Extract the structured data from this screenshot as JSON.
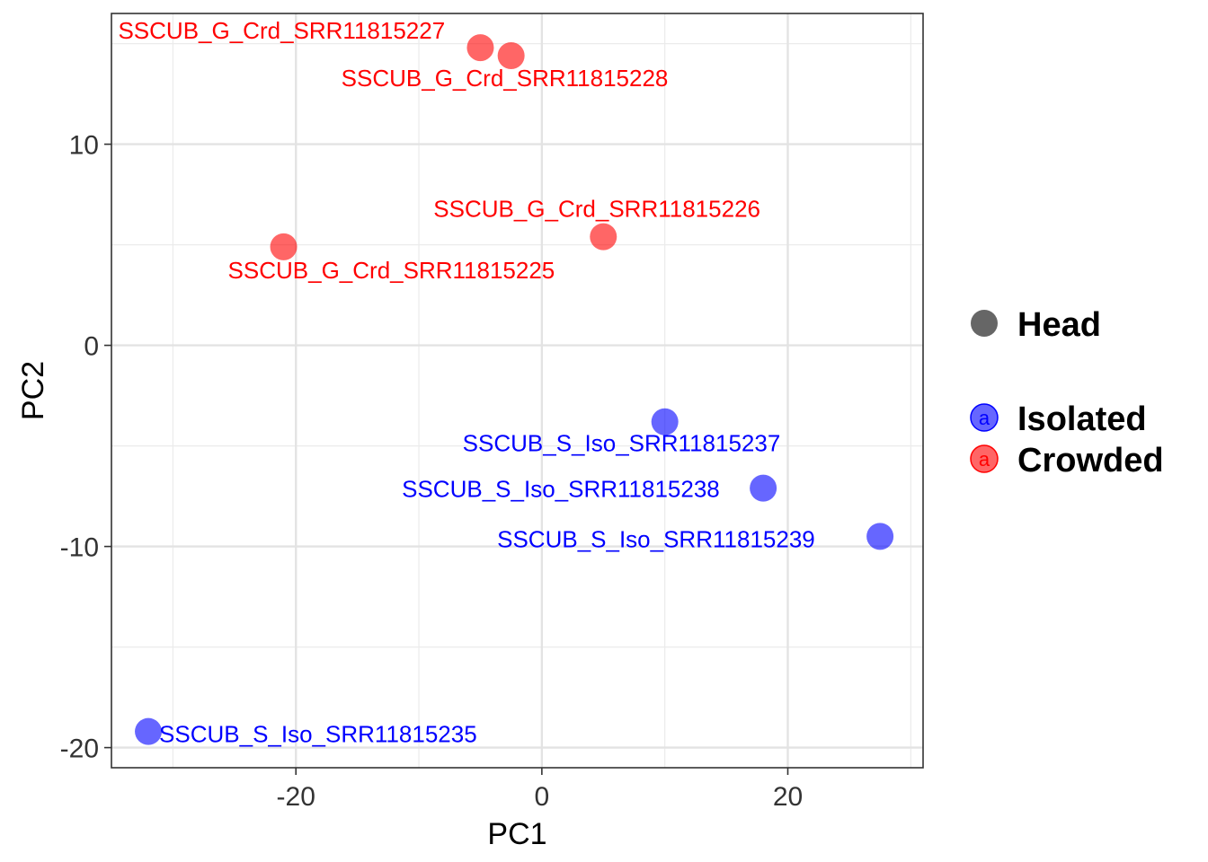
{
  "chart_data": {
    "type": "scatter",
    "title": "",
    "xlabel": "PC1",
    "ylabel": "PC2",
    "xlim": [
      -35,
      31
    ],
    "ylim": [
      -21,
      16.5
    ],
    "x_ticks": [
      -20,
      0,
      20
    ],
    "y_ticks": [
      -20,
      -10,
      0,
      10
    ],
    "grid": true,
    "legend_position": "right",
    "colors": {
      "Isolated": "#0000FF",
      "Crowded": "#FF0000"
    },
    "point_alpha": 0.6,
    "series": [
      {
        "name": "Isolated",
        "points": [
          {
            "x": -32.0,
            "y": -19.2,
            "label": "SSCUB_S_Iso_SRR11815235"
          },
          {
            "x": 10.0,
            "y": -3.8,
            "label": "SSCUB_S_Iso_SRR11815237"
          },
          {
            "x": 18.0,
            "y": -7.1,
            "label": "SSCUB_S_Iso_SRR11815238"
          },
          {
            "x": 27.5,
            "y": -9.5,
            "label": "SSCUB_S_Iso_SRR11815239"
          }
        ]
      },
      {
        "name": "Crowded",
        "points": [
          {
            "x": -21.0,
            "y": 4.9,
            "label": "SSCUB_G_Crd_SRR11815225"
          },
          {
            "x": 5.0,
            "y": 5.4,
            "label": "SSCUB_G_Crd_SRR11815226"
          },
          {
            "x": -5.0,
            "y": 14.8,
            "label": "SSCUB_G_Crd_SRR11815227"
          },
          {
            "x": -2.5,
            "y": 14.4,
            "label": "SSCUB_G_Crd_SRR11815228"
          }
        ]
      }
    ],
    "legend": {
      "shape_title": "Head",
      "key_glyph": "a",
      "entries": [
        "Isolated",
        "Crowded"
      ]
    }
  }
}
